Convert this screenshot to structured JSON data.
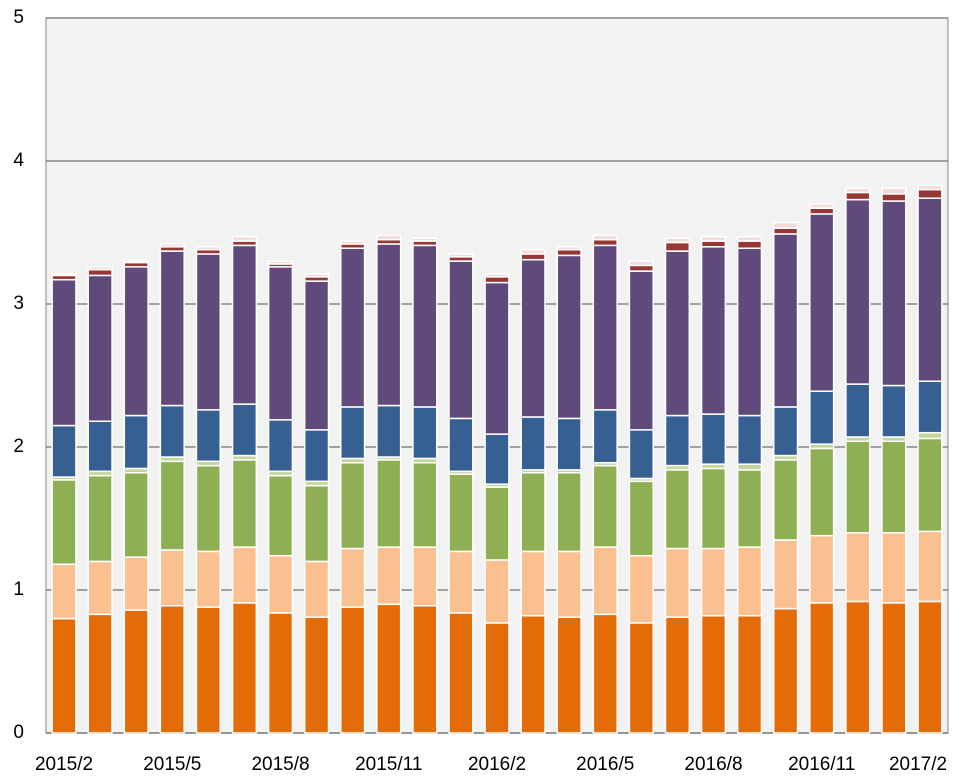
{
  "chart_data": {
    "type": "stacked_bar",
    "categories": [
      "2015/2",
      null,
      null,
      "2015/5",
      null,
      null,
      "2015/8",
      null,
      null,
      "2015/11",
      null,
      null,
      "2016/2",
      null,
      null,
      "2016/5",
      null,
      null,
      "2016/8",
      null,
      null,
      "2016/11",
      null,
      null,
      "2017/2"
    ],
    "series": [
      {
        "color": "#e36c09",
        "values": [
          0.8,
          0.83,
          0.86,
          0.89,
          0.88,
          0.91,
          0.84,
          0.81,
          0.88,
          0.9,
          0.89,
          0.84,
          0.77,
          0.82,
          0.81,
          0.83,
          0.77,
          0.81,
          0.82,
          0.82,
          0.87,
          0.91,
          0.92,
          0.91,
          0.92
        ]
      },
      {
        "color": "#fac090",
        "values": [
          0.38,
          0.37,
          0.37,
          0.39,
          0.39,
          0.39,
          0.4,
          0.39,
          0.41,
          0.4,
          0.41,
          0.43,
          0.44,
          0.45,
          0.46,
          0.47,
          0.47,
          0.48,
          0.47,
          0.48,
          0.48,
          0.47,
          0.48,
          0.49,
          0.49
        ]
      },
      {
        "color": "#8faf54",
        "values": [
          0.59,
          0.6,
          0.59,
          0.62,
          0.6,
          0.61,
          0.56,
          0.53,
          0.6,
          0.61,
          0.59,
          0.54,
          0.51,
          0.55,
          0.55,
          0.57,
          0.52,
          0.55,
          0.56,
          0.54,
          0.56,
          0.61,
          0.64,
          0.64,
          0.65
        ]
      },
      {
        "color": "#c3d69b",
        "values": [
          0.02,
          0.03,
          0.03,
          0.03,
          0.03,
          0.03,
          0.03,
          0.03,
          0.03,
          0.02,
          0.03,
          0.02,
          0.02,
          0.02,
          0.02,
          0.02,
          0.02,
          0.03,
          0.03,
          0.04,
          0.03,
          0.03,
          0.03,
          0.03,
          0.04
        ]
      },
      {
        "color": "#376092",
        "values": [
          0.36,
          0.35,
          0.37,
          0.36,
          0.36,
          0.36,
          0.36,
          0.36,
          0.36,
          0.36,
          0.36,
          0.37,
          0.35,
          0.37,
          0.36,
          0.37,
          0.34,
          0.35,
          0.35,
          0.34,
          0.34,
          0.37,
          0.37,
          0.36,
          0.36
        ]
      },
      {
        "color": "#604a7b",
        "values": [
          1.02,
          1.02,
          1.04,
          1.08,
          1.09,
          1.11,
          1.07,
          1.04,
          1.11,
          1.13,
          1.13,
          1.1,
          1.06,
          1.1,
          1.14,
          1.15,
          1.11,
          1.15,
          1.17,
          1.17,
          1.21,
          1.24,
          1.29,
          1.29,
          1.28
        ]
      },
      {
        "color": "#953735",
        "values": [
          0.03,
          0.04,
          0.03,
          0.03,
          0.03,
          0.03,
          0.02,
          0.03,
          0.03,
          0.03,
          0.03,
          0.03,
          0.04,
          0.04,
          0.04,
          0.04,
          0.04,
          0.06,
          0.04,
          0.05,
          0.04,
          0.04,
          0.05,
          0.05,
          0.06
        ]
      },
      {
        "color": "#f2dcdb",
        "values": [
          0.01,
          0.02,
          0.01,
          0.02,
          0.02,
          0.03,
          0.02,
          0.02,
          0.02,
          0.03,
          0.02,
          0.02,
          0.02,
          0.03,
          0.02,
          0.03,
          0.03,
          0.03,
          0.03,
          0.03,
          0.04,
          0.03,
          0.03,
          0.04,
          0.03
        ]
      }
    ],
    "ylim": [
      0,
      5
    ],
    "yticks": [
      0,
      1,
      2,
      3,
      4,
      5
    ],
    "grid": true
  }
}
